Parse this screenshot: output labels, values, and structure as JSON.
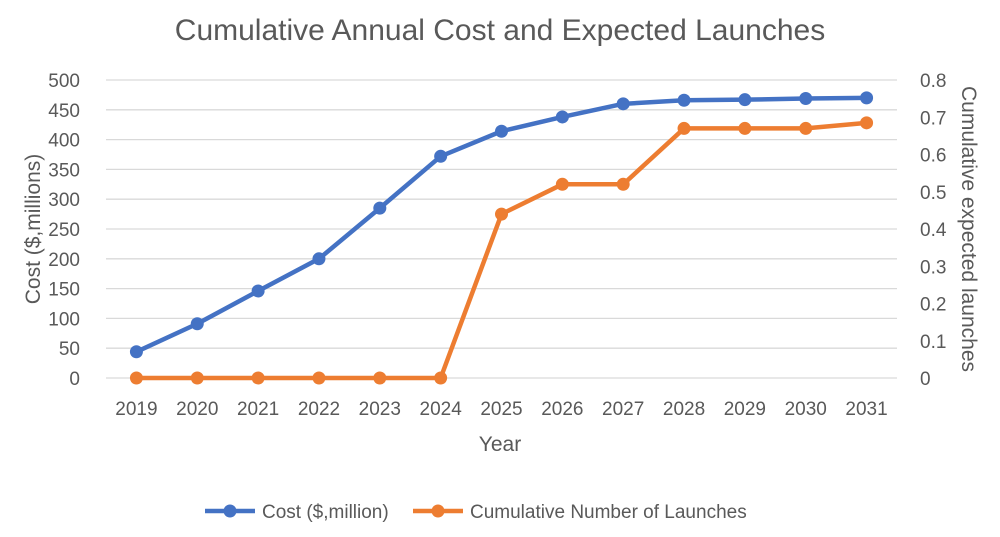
{
  "chart_data": {
    "type": "line",
    "title": "Cumulative Annual Cost and Expected Launches",
    "xlabel": "Year",
    "ylabel": "Cost ($,millions)",
    "y2label": "Cumulative expected  launches",
    "categories": [
      "2019",
      "2020",
      "2021",
      "2022",
      "2023",
      "2024",
      "2025",
      "2026",
      "2027",
      "2028",
      "2029",
      "2030",
      "2031"
    ],
    "ylim": [
      0,
      500
    ],
    "yticks": [
      "0",
      "50",
      "100",
      "150",
      "200",
      "250",
      "300",
      "350",
      "400",
      "450",
      "500"
    ],
    "y2lim": [
      0,
      0.8
    ],
    "y2ticks": [
      "0",
      "0.1",
      "0.2",
      "0.3",
      "0.4",
      "0.5",
      "0.6",
      "0.7",
      "0.8"
    ],
    "grid": true,
    "legend_position": "bottom",
    "series": [
      {
        "name": "Cost ($,million)",
        "axis": "left",
        "color": "#4472C4",
        "values": [
          44,
          91,
          146,
          200,
          285,
          372,
          414,
          438,
          460,
          466,
          467,
          469,
          470
        ]
      },
      {
        "name": "Cumulative Number of Launches",
        "axis": "right",
        "color": "#ED7D31",
        "values": [
          0,
          0,
          0,
          0,
          0,
          0,
          0.44,
          0.52,
          0.52,
          0.67,
          0.67,
          0.67,
          0.685
        ]
      }
    ]
  }
}
